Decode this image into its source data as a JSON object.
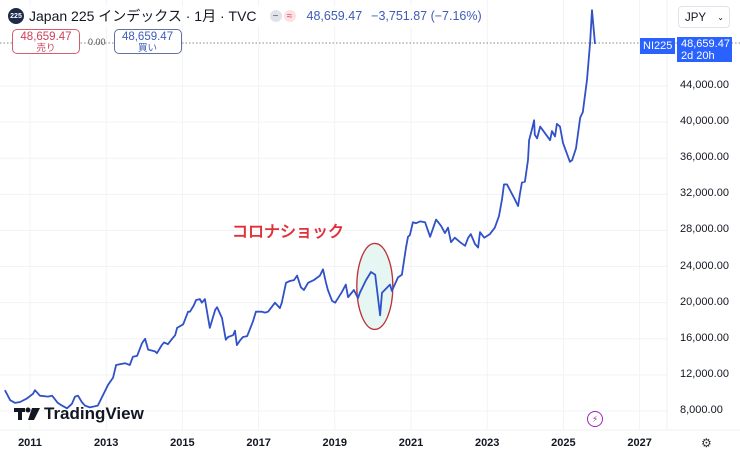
{
  "header": {
    "logo_text": "225",
    "title": "Japan 225 インデックス · 1月 · TVC",
    "indicator_icons": [
      "minus",
      "approx"
    ],
    "price": "48,659.47",
    "change": "−3,751.87 (−7.16%)"
  },
  "trade": {
    "sell_price": "48,659.47",
    "sell_label": "売り",
    "spread": "0.00",
    "buy_price": "48,659.47",
    "buy_label": "買い"
  },
  "currency": "JPY",
  "price_label": {
    "symbol": "NI225",
    "price": "48,659.47",
    "countdown": "2d 20h"
  },
  "annotation": "コロナショック",
  "watermark": "TradingView",
  "colors": {
    "line": "#3051c8",
    "accent": "#2962ff",
    "annotation": "#e0303a",
    "highlight_fill": "#e8f7f4"
  },
  "chart_data": {
    "type": "line",
    "series": [
      {
        "x": [
          2010.34,
          2010.48,
          2010.61,
          2010.74,
          2010.92,
          2011.08,
          2011.13,
          2011.26,
          2011.47,
          2011.58,
          2011.73,
          2011.84,
          2011.97,
          2012.1,
          2012.18,
          2012.26,
          2012.36,
          2012.44,
          2012.57,
          2012.78,
          2012.92,
          2013.05,
          2013.18,
          2013.26,
          2013.49,
          2013.62,
          2013.7,
          2013.81,
          2013.94,
          2014.02,
          2014.1,
          2014.28,
          2014.33,
          2014.46,
          2014.52,
          2014.62,
          2014.73,
          2014.81,
          2014.86,
          2015.02,
          2015.15,
          2015.2,
          2015.3,
          2015.36,
          2015.46,
          2015.51,
          2015.59,
          2015.72,
          2015.86,
          2015.91,
          2016.04,
          2016.14,
          2016.2,
          2016.33,
          2016.38,
          2016.43,
          2016.51,
          2016.59,
          2016.7,
          2016.85,
          2016.93,
          2017.09,
          2017.17,
          2017.25,
          2017.43,
          2017.56,
          2017.61,
          2017.72,
          2017.82,
          2017.93,
          2018.01,
          2018.11,
          2018.19,
          2018.3,
          2018.45,
          2018.61,
          2018.69,
          2018.77,
          2018.82,
          2018.93,
          2019.01,
          2019.19,
          2019.29,
          2019.35,
          2019.5,
          2019.61,
          2019.66,
          2019.82,
          2019.95,
          2020.06,
          2020.19,
          2020.24,
          2020.45,
          2020.5,
          2020.66,
          2020.76,
          2020.87,
          2020.92,
          2020.97,
          2021.05,
          2021.13,
          2021.24,
          2021.37,
          2021.5,
          2021.66,
          2021.79,
          2021.89,
          2021.97,
          2022.05,
          2022.15,
          2022.29,
          2022.42,
          2022.5,
          2022.57,
          2022.68,
          2022.76,
          2022.81,
          2022.92,
          2023.07,
          2023.2,
          2023.31,
          2023.39,
          2023.44,
          2023.52,
          2023.73,
          2023.81,
          2023.86,
          2023.91,
          2023.99,
          2024.07,
          2024.1,
          2024.18,
          2024.23,
          2024.25,
          2024.31,
          2024.39,
          2024.46,
          2024.65,
          2024.7,
          2024.78,
          2024.83,
          2024.91,
          2024.99,
          2025.17,
          2025.23,
          2025.33,
          2025.44,
          2025.51,
          2025.62,
          2025.7,
          2025.75,
          2025.83
        ],
        "values": [
          10300,
          9200,
          8900,
          9000,
          9400,
          9900,
          10300,
          9700,
          9600,
          9700,
          8900,
          8600,
          8300,
          8800,
          9600,
          9700,
          9000,
          8600,
          8400,
          8600,
          9800,
          10900,
          11700,
          13100,
          13300,
          13100,
          14000,
          14100,
          15500,
          16000,
          14800,
          14600,
          14400,
          15300,
          15600,
          15400,
          16000,
          16400,
          17200,
          17600,
          19000,
          19000,
          19700,
          20300,
          20400,
          20000,
          20400,
          17200,
          19200,
          19500,
          18300,
          15900,
          16200,
          16400,
          16900,
          15300,
          15800,
          16200,
          16300,
          17900,
          19000,
          19000,
          18900,
          19000,
          20000,
          19400,
          20000,
          22200,
          22400,
          22500,
          23000,
          21700,
          21400,
          22200,
          22500,
          23000,
          23700,
          22200,
          21400,
          20200,
          20000,
          21200,
          22000,
          20600,
          21400,
          20500,
          21100,
          22500,
          23400,
          23100,
          18600,
          21100,
          22000,
          21300,
          22800,
          23100,
          26100,
          27300,
          27500,
          28900,
          28800,
          29000,
          28900,
          27300,
          29200,
          28500,
          27700,
          28300,
          26700,
          27200,
          26700,
          26300,
          27200,
          27600,
          26500,
          26100,
          27800,
          27200,
          27600,
          28300,
          29600,
          31500,
          33100,
          33100,
          31400,
          30700,
          32100,
          33300,
          33400,
          35800,
          38000,
          39300,
          40200,
          38600,
          38200,
          39500,
          39100,
          38000,
          39000,
          38400,
          39800,
          39500,
          37700,
          35600,
          35800,
          37100,
          40500,
          41100,
          44700,
          48800,
          52400,
          48659.47
        ]
      }
    ],
    "x_ticks": [
      "2011",
      "2013",
      "2015",
      "2017",
      "2019",
      "2021",
      "2023",
      "2025",
      "2027"
    ],
    "y_ticks": [
      "8,000.00",
      "12,000.00",
      "16,000.00",
      "20,000.00",
      "24,000.00",
      "28,000.00",
      "32,000.00",
      "36,000.00",
      "40,000.00",
      "44,000.00"
    ],
    "xlim": [
      2010.2,
      2027.9
    ],
    "ylim": [
      5800,
      55600
    ],
    "grid": true,
    "highlight": {
      "x": 2020.05,
      "y": 21800
    }
  }
}
